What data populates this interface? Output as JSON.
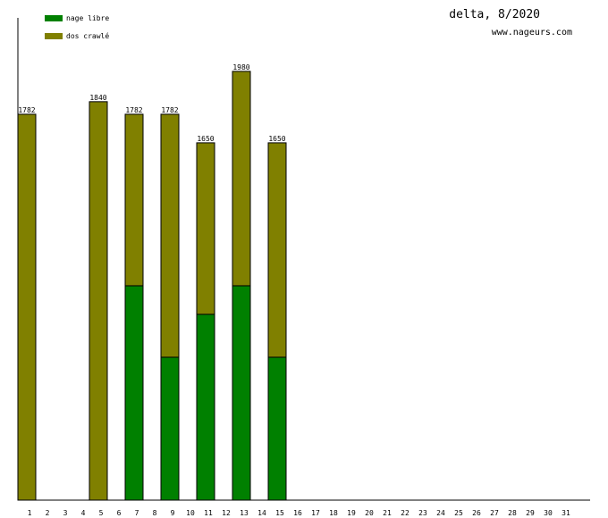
{
  "chart_data": {
    "type": "bar",
    "stacked": true,
    "title": "delta, 8/2020",
    "subtitle": "www.nageurs.com",
    "categories": [
      "1",
      "2",
      "3",
      "4",
      "5",
      "6",
      "7",
      "8",
      "9",
      "10",
      "11",
      "12",
      "13",
      "14",
      "15",
      "16",
      "17",
      "18",
      "19",
      "20",
      "21",
      "22",
      "23",
      "24",
      "25",
      "26",
      "27",
      "28",
      "29",
      "30",
      "31"
    ],
    "series": [
      {
        "name": "nage libre",
        "color": "#008000",
        "values": [
          0,
          0,
          0,
          0,
          0,
          0,
          990,
          0,
          660,
          0,
          858,
          0,
          990,
          0,
          660,
          0,
          0,
          0,
          0,
          0,
          0,
          0,
          0,
          0,
          0,
          0,
          0,
          0,
          0,
          0,
          0
        ]
      },
      {
        "name": "dos crawlé",
        "color": "#808000",
        "values": [
          1782,
          0,
          0,
          0,
          1840,
          0,
          792,
          0,
          1122,
          0,
          792,
          0,
          990,
          0,
          990,
          0,
          0,
          0,
          0,
          0,
          0,
          0,
          0,
          0,
          0,
          0,
          0,
          0,
          0,
          0,
          0
        ]
      }
    ],
    "totals": [
      "1782",
      "",
      "",
      "",
      "1840",
      "",
      "1782",
      "",
      "1782",
      "",
      "1650",
      "",
      "1980",
      "",
      "1650",
      "",
      "",
      "",
      "",
      "",
      "",
      "",
      "",
      "",
      "",
      "",
      "",
      "",
      "",
      "",
      ""
    ],
    "ylim": [
      0,
      2227
    ],
    "grid": false,
    "legend_position": "top-left"
  }
}
